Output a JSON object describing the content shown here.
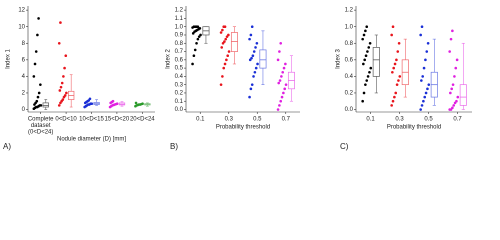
{
  "chart_data": [
    {
      "type": "box",
      "panel_label": "A)",
      "y_label": "Index 1",
      "x_label": "Nodule diameter (D) [mm]",
      "categories": [
        [
          "Complete",
          "dataset",
          "(0<D<24)"
        ],
        "0<D<10",
        "10<D<15",
        "15<D<20",
        "20<D<24"
      ],
      "ylim": [
        -0.3,
        12.5
      ],
      "yticks": [
        0,
        2,
        4,
        6,
        8,
        10,
        12
      ],
      "groups": [
        {
          "color": "#000000",
          "points": [
            0.1,
            0.2,
            0.3,
            0.3,
            0.4,
            0.5,
            0.5,
            0.6,
            0.8,
            1.0,
            1.5,
            2.0,
            3,
            4,
            5.5,
            7,
            9,
            11
          ],
          "box": {
            "min": 0,
            "q1": 0.3,
            "median": 0.5,
            "q3": 0.8,
            "max": 1.2
          }
        },
        {
          "color": "#e8141c",
          "points": [
            0.5,
            0.8,
            1.0,
            1.2,
            1.5,
            1.7,
            2,
            2.3,
            2.7,
            3.2,
            4,
            5,
            6.5,
            8,
            10.5
          ],
          "box": {
            "min": 0.3,
            "q1": 1.2,
            "median": 1.7,
            "q3": 2.2,
            "max": 4.2
          }
        },
        {
          "color": "#1a2fd6",
          "points": [
            0.3,
            0.4,
            0.5,
            0.6,
            0.6,
            0.7,
            0.7,
            0.8,
            0.9,
            1.0,
            1.1,
            1.3
          ],
          "box": {
            "min": 0.5,
            "q1": 0.6,
            "median": 0.7,
            "q3": 0.85,
            "max": 1.2
          }
        },
        {
          "color": "#e020e0",
          "points": [
            0.3,
            0.4,
            0.5,
            0.55,
            0.6,
            0.65,
            0.7,
            0.8,
            0.9,
            1.0
          ],
          "box": {
            "min": 0.4,
            "q1": 0.55,
            "median": 0.65,
            "q3": 0.8,
            "max": 0.95
          }
        },
        {
          "color": "#2a9a2a",
          "points": [
            0.4,
            0.5,
            0.55,
            0.6,
            0.6,
            0.65,
            0.7,
            0.8
          ],
          "box": {
            "min": 0.4,
            "q1": 0.55,
            "median": 0.6,
            "q3": 0.7,
            "max": 0.8
          }
        }
      ]
    },
    {
      "type": "box",
      "panel_label": "B)",
      "y_label": "Index 2",
      "x_label": "Probability threshold",
      "categories": [
        "0.1",
        "0.3",
        "0.5",
        "0.7"
      ],
      "ylim": [
        -0.03,
        1.25
      ],
      "yticks": [
        {
          "value": 0,
          "label": "0.0"
        },
        0.1,
        0.2,
        0.3,
        0.4,
        0.5,
        0.6,
        0.7,
        0.8,
        0.9,
        {
          "value": 1,
          "label": "1.0"
        },
        1.1,
        1.2
      ],
      "groups": [
        {
          "color": "#000000",
          "points": [
            0.55,
            0.65,
            0.72,
            0.8,
            0.85,
            0.88,
            0.9,
            0.92,
            0.94,
            0.95,
            0.96,
            0.97,
            0.98,
            0.99,
            1.0,
            1.0,
            1.0,
            1.0
          ],
          "box": {
            "min": 0.8,
            "q1": 0.9,
            "median": 0.95,
            "q3": 1.0,
            "max": 1.0
          }
        },
        {
          "color": "#e8141c",
          "points": [
            0.3,
            0.4,
            0.5,
            0.55,
            0.6,
            0.65,
            0.7,
            0.75,
            0.8,
            0.82,
            0.85,
            0.88,
            0.9,
            0.93,
            0.96,
            1.0,
            1.0
          ],
          "box": {
            "min": 0.55,
            "q1": 0.7,
            "median": 0.82,
            "q3": 0.93,
            "max": 1.0
          }
        },
        {
          "color": "#1a2fd6",
          "points": [
            0.15,
            0.25,
            0.3,
            0.4,
            0.45,
            0.5,
            0.55,
            0.6,
            0.62,
            0.65,
            0.7,
            0.75,
            0.8,
            0.85,
            0.9,
            1.0
          ],
          "box": {
            "min": 0.3,
            "q1": 0.5,
            "median": 0.6,
            "q3": 0.72,
            "max": 0.95
          }
        },
        {
          "color": "#e020e0",
          "points": [
            0.0,
            0.05,
            0.1,
            0.15,
            0.2,
            0.25,
            0.3,
            0.32,
            0.35,
            0.4,
            0.45,
            0.5,
            0.55,
            0.6,
            0.7,
            0.8
          ],
          "box": {
            "min": 0.1,
            "q1": 0.25,
            "median": 0.35,
            "q3": 0.45,
            "max": 0.65
          }
        }
      ]
    },
    {
      "type": "box",
      "panel_label": "C)",
      "y_label": "Index 3",
      "x_label": "Probability threshold",
      "categories": [
        "0.1",
        "0.3",
        "0.5",
        "0.7"
      ],
      "ylim": [
        -0.03,
        1.25
      ],
      "yticks": [
        {
          "value": 0,
          "label": "0.0"
        },
        0.2,
        0.4,
        0.6,
        0.8,
        {
          "value": 1,
          "label": "1.0"
        },
        1.2
      ],
      "groups": [
        {
          "color": "#000000",
          "points": [
            0.1,
            0.2,
            0.3,
            0.35,
            0.4,
            0.45,
            0.5,
            0.55,
            0.6,
            0.65,
            0.7,
            0.75,
            0.8,
            0.85,
            0.9,
            0.95,
            1.0
          ],
          "box": {
            "min": 0.2,
            "q1": 0.4,
            "median": 0.6,
            "q3": 0.75,
            "max": 0.9
          }
        },
        {
          "color": "#e8141c",
          "points": [
            0.05,
            0.1,
            0.15,
            0.2,
            0.3,
            0.35,
            0.4,
            0.45,
            0.5,
            0.55,
            0.6,
            0.7,
            0.8,
            0.9,
            1.0
          ],
          "box": {
            "min": 0.15,
            "q1": 0.3,
            "median": 0.45,
            "q3": 0.6,
            "max": 0.85
          }
        },
        {
          "color": "#1a2fd6",
          "points": [
            0.0,
            0.05,
            0.1,
            0.15,
            0.2,
            0.25,
            0.3,
            0.35,
            0.4,
            0.5,
            0.6,
            0.7,
            0.8,
            0.9,
            1.0
          ],
          "box": {
            "min": 0.05,
            "q1": 0.15,
            "median": 0.3,
            "q3": 0.45,
            "max": 0.85
          }
        },
        {
          "color": "#e020e0",
          "points": [
            0.0,
            0.0,
            0.02,
            0.05,
            0.08,
            0.1,
            0.15,
            0.2,
            0.25,
            0.3,
            0.4,
            0.5,
            0.6,
            0.7,
            0.85,
            0.95
          ],
          "box": {
            "min": 0.0,
            "q1": 0.05,
            "median": 0.15,
            "q3": 0.3,
            "max": 0.8
          }
        }
      ]
    }
  ]
}
